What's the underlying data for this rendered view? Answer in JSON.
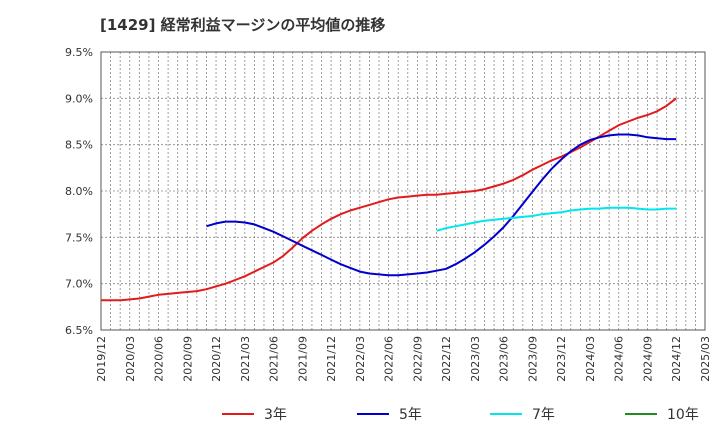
{
  "chart_data": {
    "type": "line",
    "title": "[1429]  経常利益マージンの平均値の推移",
    "ylim": [
      6.5,
      9.5
    ],
    "y_ticks": [
      6.5,
      7.0,
      7.5,
      8.0,
      8.5,
      9.0,
      9.5
    ],
    "y_tick_labels": [
      "6.5%",
      "7.0%",
      "7.5%",
      "8.0%",
      "8.5%",
      "9.0%",
      "9.5%"
    ],
    "x_tick_labels": [
      "2019/12",
      "2020/03",
      "2020/06",
      "2020/09",
      "2020/12",
      "2021/03",
      "2021/06",
      "2021/09",
      "2021/12",
      "2022/03",
      "2022/06",
      "2022/09",
      "2022/12",
      "2023/03",
      "2023/06",
      "2023/09",
      "2023/12",
      "2024/03",
      "2024/06",
      "2024/09",
      "2024/12",
      "2025/03"
    ],
    "grid": true,
    "legend_position": "bottom",
    "series": [
      {
        "name": "3年",
        "color": "#e31a1c",
        "points": [
          [
            "2019/12",
            6.82
          ],
          [
            "2020/01",
            6.82
          ],
          [
            "2020/02",
            6.82
          ],
          [
            "2020/03",
            6.83
          ],
          [
            "2020/04",
            6.84
          ],
          [
            "2020/05",
            6.86
          ],
          [
            "2020/06",
            6.88
          ],
          [
            "2020/07",
            6.89
          ],
          [
            "2020/08",
            6.9
          ],
          [
            "2020/09",
            6.91
          ],
          [
            "2020/10",
            6.92
          ],
          [
            "2020/11",
            6.94
          ],
          [
            "2020/12",
            6.97
          ],
          [
            "2021/01",
            7.0
          ],
          [
            "2021/02",
            7.04
          ],
          [
            "2021/03",
            7.08
          ],
          [
            "2021/04",
            7.13
          ],
          [
            "2021/05",
            7.18
          ],
          [
            "2021/06",
            7.23
          ],
          [
            "2021/07",
            7.3
          ],
          [
            "2021/08",
            7.39
          ],
          [
            "2021/09",
            7.49
          ],
          [
            "2021/10",
            7.57
          ],
          [
            "2021/11",
            7.64
          ],
          [
            "2021/12",
            7.7
          ],
          [
            "2022/01",
            7.75
          ],
          [
            "2022/02",
            7.79
          ],
          [
            "2022/03",
            7.82
          ],
          [
            "2022/04",
            7.85
          ],
          [
            "2022/05",
            7.88
          ],
          [
            "2022/06",
            7.91
          ],
          [
            "2022/07",
            7.93
          ],
          [
            "2022/08",
            7.94
          ],
          [
            "2022/09",
            7.95
          ],
          [
            "2022/10",
            7.96
          ],
          [
            "2022/11",
            7.96
          ],
          [
            "2022/12",
            7.97
          ],
          [
            "2023/01",
            7.98
          ],
          [
            "2023/02",
            7.99
          ],
          [
            "2023/03",
            8.0
          ],
          [
            "2023/04",
            8.02
          ],
          [
            "2023/05",
            8.05
          ],
          [
            "2023/06",
            8.08
          ],
          [
            "2023/07",
            8.12
          ],
          [
            "2023/08",
            8.17
          ],
          [
            "2023/09",
            8.23
          ],
          [
            "2023/10",
            8.28
          ],
          [
            "2023/11",
            8.33
          ],
          [
            "2023/12",
            8.37
          ],
          [
            "2024/01",
            8.42
          ],
          [
            "2024/02",
            8.47
          ],
          [
            "2024/03",
            8.53
          ],
          [
            "2024/04",
            8.59
          ],
          [
            "2024/05",
            8.65
          ],
          [
            "2024/06",
            8.71
          ],
          [
            "2024/07",
            8.75
          ],
          [
            "2024/08",
            8.79
          ],
          [
            "2024/09",
            8.82
          ],
          [
            "2024/10",
            8.86
          ],
          [
            "2024/11",
            8.92
          ],
          [
            "2024/12",
            9.0
          ]
        ]
      },
      {
        "name": "5年",
        "color": "#0000cc",
        "points": [
          [
            "2020/11",
            7.62
          ],
          [
            "2020/12",
            7.65
          ],
          [
            "2021/01",
            7.67
          ],
          [
            "2021/02",
            7.67
          ],
          [
            "2021/03",
            7.66
          ],
          [
            "2021/04",
            7.64
          ],
          [
            "2021/05",
            7.6
          ],
          [
            "2021/06",
            7.56
          ],
          [
            "2021/07",
            7.51
          ],
          [
            "2021/08",
            7.46
          ],
          [
            "2021/09",
            7.41
          ],
          [
            "2021/10",
            7.36
          ],
          [
            "2021/11",
            7.31
          ],
          [
            "2021/12",
            7.26
          ],
          [
            "2022/01",
            7.21
          ],
          [
            "2022/02",
            7.17
          ],
          [
            "2022/03",
            7.13
          ],
          [
            "2022/04",
            7.11
          ],
          [
            "2022/05",
            7.1
          ],
          [
            "2022/06",
            7.09
          ],
          [
            "2022/07",
            7.09
          ],
          [
            "2022/08",
            7.1
          ],
          [
            "2022/09",
            7.11
          ],
          [
            "2022/10",
            7.12
          ],
          [
            "2022/11",
            7.14
          ],
          [
            "2022/12",
            7.16
          ],
          [
            "2023/01",
            7.21
          ],
          [
            "2023/02",
            7.27
          ],
          [
            "2023/03",
            7.34
          ],
          [
            "2023/04",
            7.42
          ],
          [
            "2023/05",
            7.51
          ],
          [
            "2023/06",
            7.61
          ],
          [
            "2023/07",
            7.73
          ],
          [
            "2023/08",
            7.86
          ],
          [
            "2023/09",
            7.99
          ],
          [
            "2023/10",
            8.12
          ],
          [
            "2023/11",
            8.24
          ],
          [
            "2023/12",
            8.34
          ],
          [
            "2024/01",
            8.43
          ],
          [
            "2024/02",
            8.5
          ],
          [
            "2024/03",
            8.55
          ],
          [
            "2024/04",
            8.58
          ],
          [
            "2024/05",
            8.6
          ],
          [
            "2024/06",
            8.61
          ],
          [
            "2024/07",
            8.61
          ],
          [
            "2024/08",
            8.6
          ],
          [
            "2024/09",
            8.58
          ],
          [
            "2024/10",
            8.57
          ],
          [
            "2024/11",
            8.56
          ],
          [
            "2024/12",
            8.56
          ]
        ]
      },
      {
        "name": "7年",
        "color": "#00e5ee",
        "points": [
          [
            "2022/11",
            7.57
          ],
          [
            "2022/12",
            7.6
          ],
          [
            "2023/01",
            7.62
          ],
          [
            "2023/02",
            7.64
          ],
          [
            "2023/03",
            7.66
          ],
          [
            "2023/04",
            7.68
          ],
          [
            "2023/05",
            7.69
          ],
          [
            "2023/06",
            7.7
          ],
          [
            "2023/07",
            7.71
          ],
          [
            "2023/08",
            7.72
          ],
          [
            "2023/09",
            7.73
          ],
          [
            "2023/10",
            7.75
          ],
          [
            "2023/11",
            7.76
          ],
          [
            "2023/12",
            7.77
          ],
          [
            "2024/01",
            7.79
          ],
          [
            "2024/02",
            7.8
          ],
          [
            "2024/03",
            7.81
          ],
          [
            "2024/04",
            7.81
          ],
          [
            "2024/05",
            7.82
          ],
          [
            "2024/06",
            7.82
          ],
          [
            "2024/07",
            7.82
          ],
          [
            "2024/08",
            7.81
          ],
          [
            "2024/09",
            7.8
          ],
          [
            "2024/10",
            7.8
          ],
          [
            "2024/11",
            7.81
          ],
          [
            "2024/12",
            7.81
          ]
        ]
      },
      {
        "name": "10年",
        "color": "#228b22",
        "points": []
      }
    ]
  }
}
